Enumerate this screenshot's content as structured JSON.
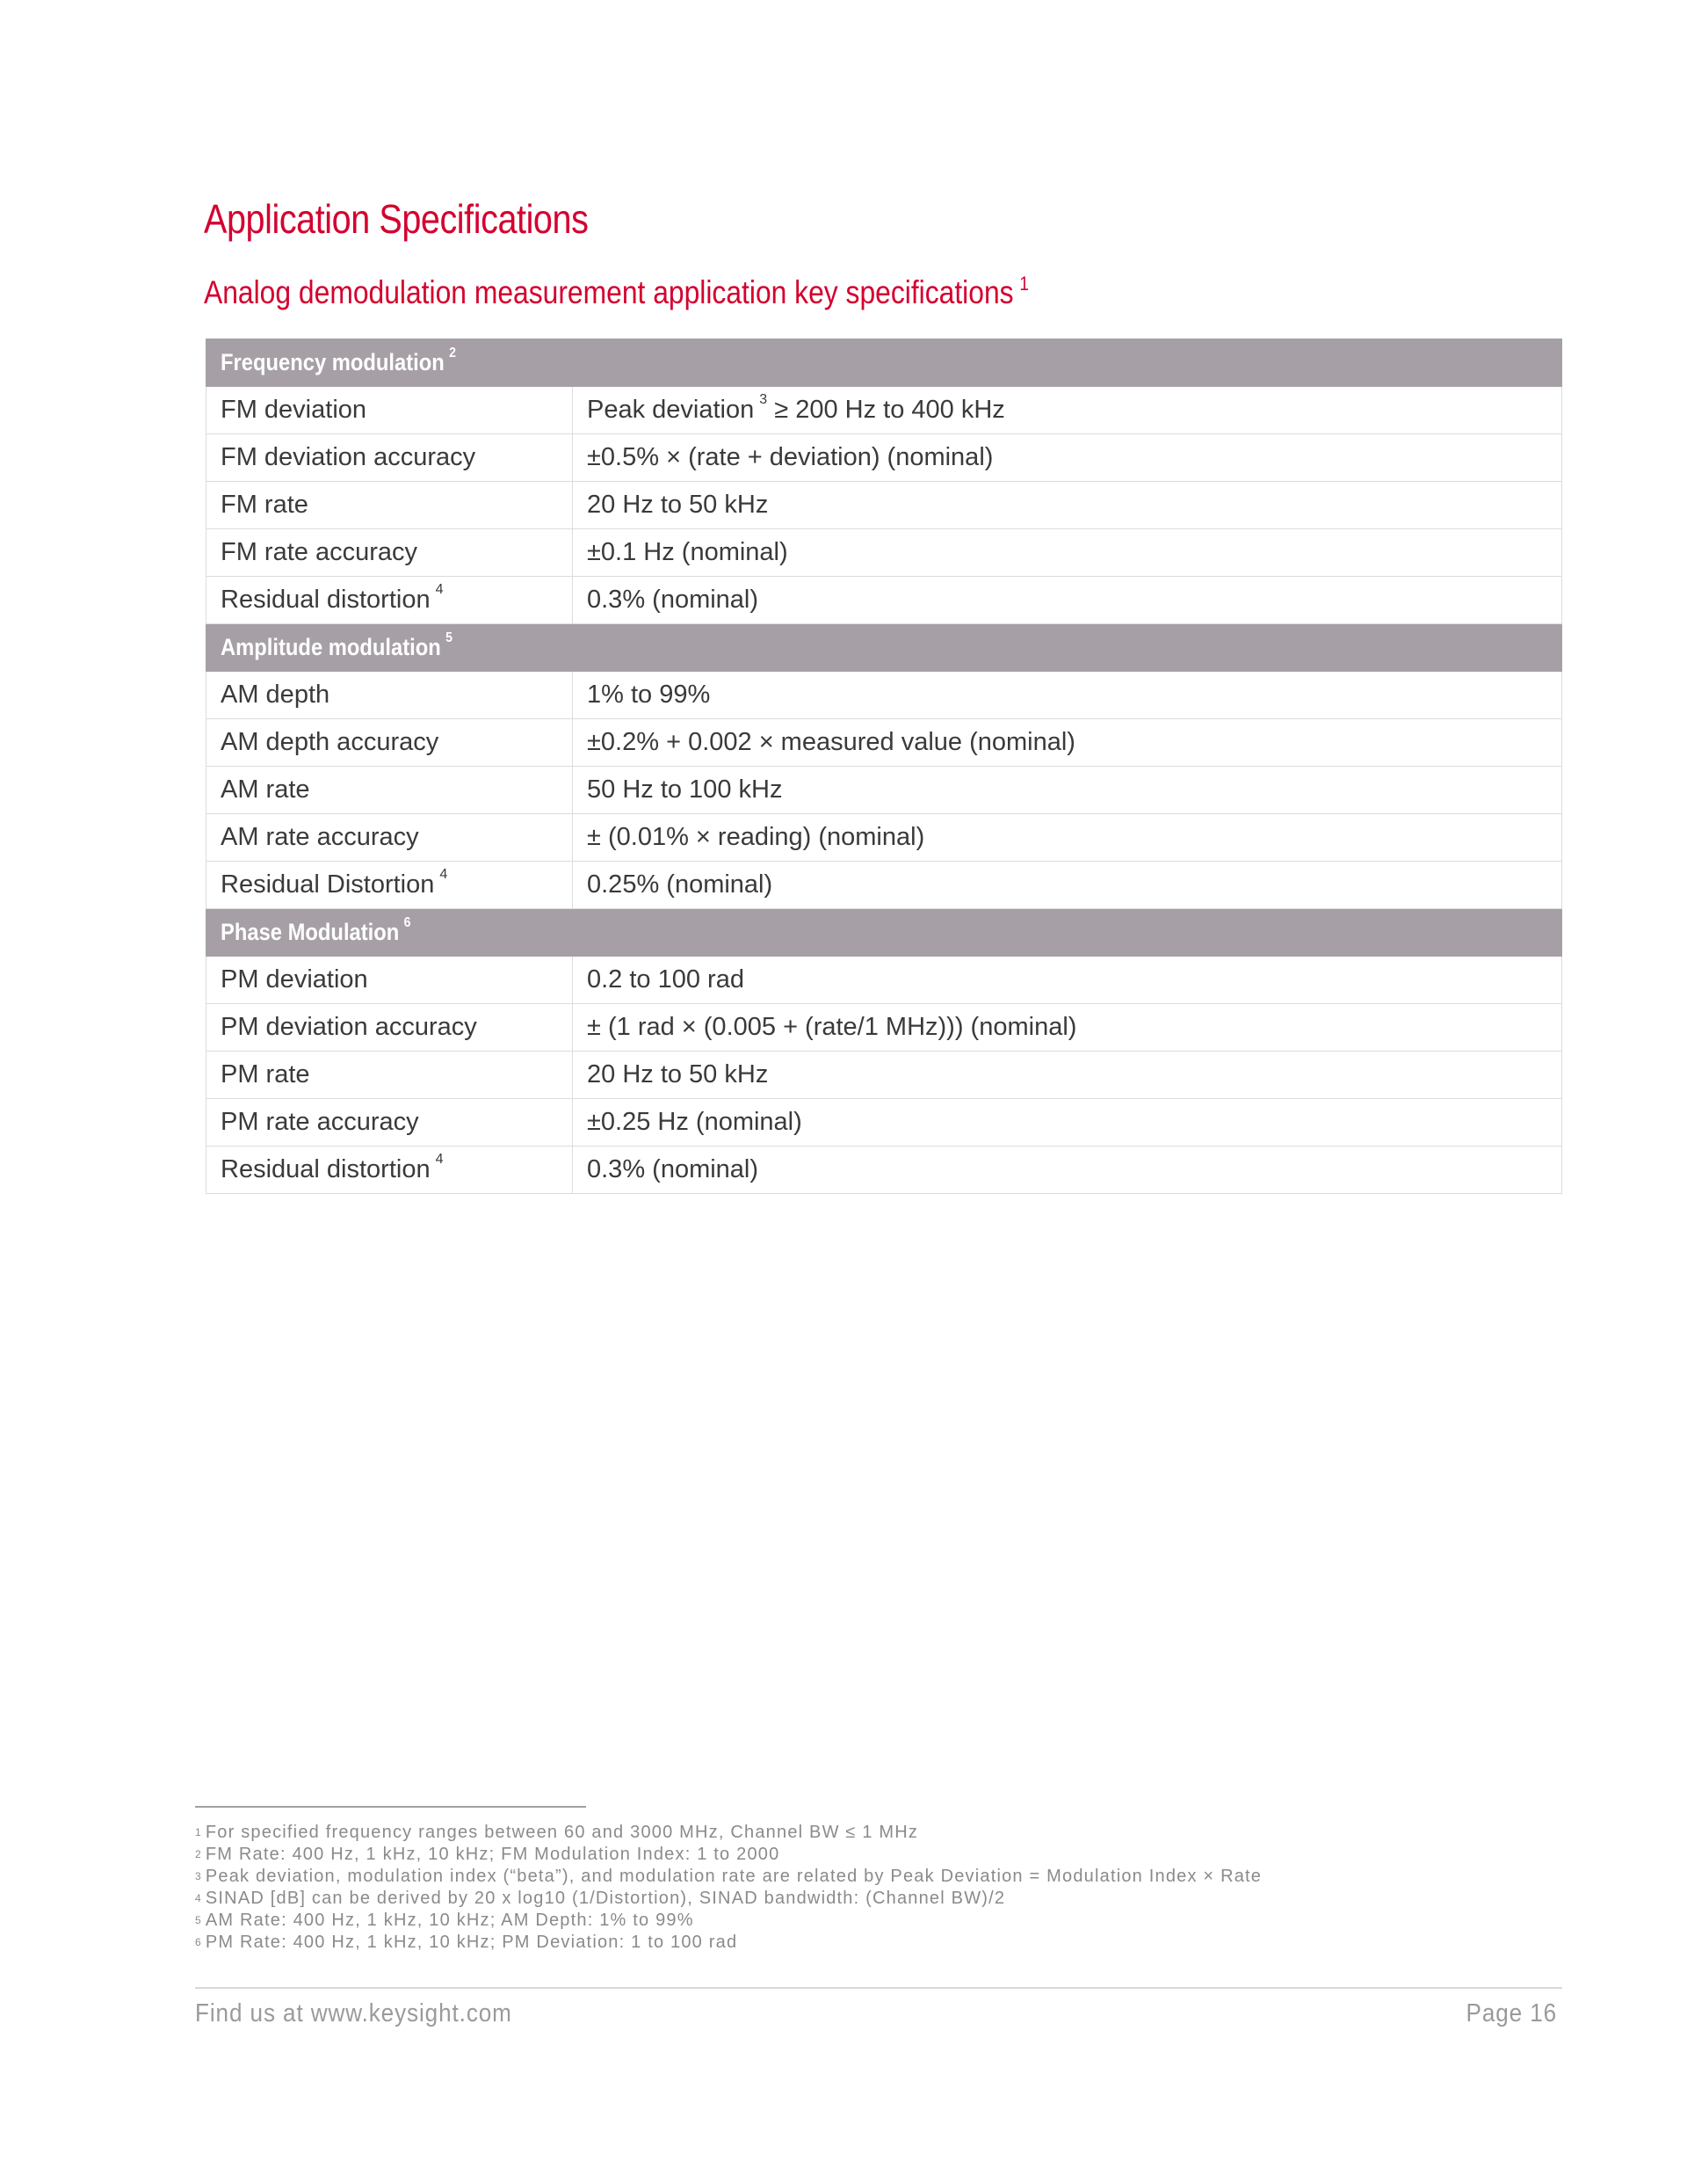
{
  "page": {
    "title": "Application Specifications",
    "subtitle": "Analog demodulation measurement application key specifications",
    "subtitle_note": "1"
  },
  "sections": [
    {
      "header": "Frequency modulation",
      "note": "2",
      "rows": [
        {
          "label": "FM deviation",
          "note": "",
          "value": "Peak deviation",
          "value_note": "3",
          "value_suffix": "≥ 200 Hz to 400 kHz"
        },
        {
          "label": "FM deviation accuracy",
          "note": "",
          "value": "±0.5% × (rate + deviation) (nominal)"
        },
        {
          "label": "FM rate",
          "note": "",
          "value": "20 Hz to 50 kHz"
        },
        {
          "label": "FM rate accuracy",
          "note": "",
          "value": "±0.1 Hz (nominal)"
        },
        {
          "label": "Residual distortion",
          "note": "4",
          "value": "0.3% (nominal)"
        }
      ]
    },
    {
      "header": "Amplitude modulation",
      "note": "5",
      "rows": [
        {
          "label": "AM depth",
          "note": "",
          "value": "1% to 99%"
        },
        {
          "label": "AM depth accuracy",
          "note": "",
          "value": "±0.2% + 0.002 × measured value (nominal)"
        },
        {
          "label": "AM rate",
          "note": "",
          "value": "50 Hz to 100 kHz"
        },
        {
          "label": "AM rate accuracy",
          "note": "",
          "value": "± (0.01% × reading) (nominal)"
        },
        {
          "label": "Residual Distortion",
          "note": "4",
          "value": "0.25% (nominal)"
        }
      ]
    },
    {
      "header": "Phase Modulation",
      "note": "6",
      "rows": [
        {
          "label": "PM deviation",
          "note": "",
          "value": "0.2 to 100 rad"
        },
        {
          "label": "PM deviation accuracy",
          "note": "",
          "value": "± (1 rad × (0.005 + (rate/1 MHz))) (nominal)"
        },
        {
          "label": "PM rate",
          "note": "",
          "value": "20 Hz to 50 kHz"
        },
        {
          "label": "PM rate accuracy",
          "note": "",
          "value": "±0.25 Hz (nominal)"
        },
        {
          "label": "Residual distortion",
          "note": "4",
          "value": "0.3% (nominal)"
        }
      ]
    }
  ],
  "footnotes": [
    {
      "n": "1",
      "text": "For specified frequency ranges between 60 and 3000 MHz, Channel BW ≤ 1 MHz"
    },
    {
      "n": "2",
      "text": "FM Rate: 400 Hz, 1 kHz, 10 kHz; FM Modulation Index: 1 to 2000"
    },
    {
      "n": "3",
      "text": "Peak deviation, modulation index (“beta”), and modulation rate are related by Peak Deviation = Modulation Index × Rate"
    },
    {
      "n": "4",
      "text": "SINAD [dB] can be derived by 20 x log10 (1/Distortion), SINAD bandwidth: (Channel BW)/2"
    },
    {
      "n": "5",
      "text": "AM Rate: 400 Hz, 1 kHz, 10 kHz; AM Depth: 1% to 99%"
    },
    {
      "n": "6",
      "text": "PM Rate: 400 Hz, 1 kHz, 10 kHz; PM Deviation: 1 to 100 rad"
    }
  ],
  "footer": {
    "left": "Find us at www.keysight.com",
    "right": "Page 16"
  },
  "colors": {
    "accent": "#d4002f",
    "section_header_bg": "#a6a0a6"
  }
}
